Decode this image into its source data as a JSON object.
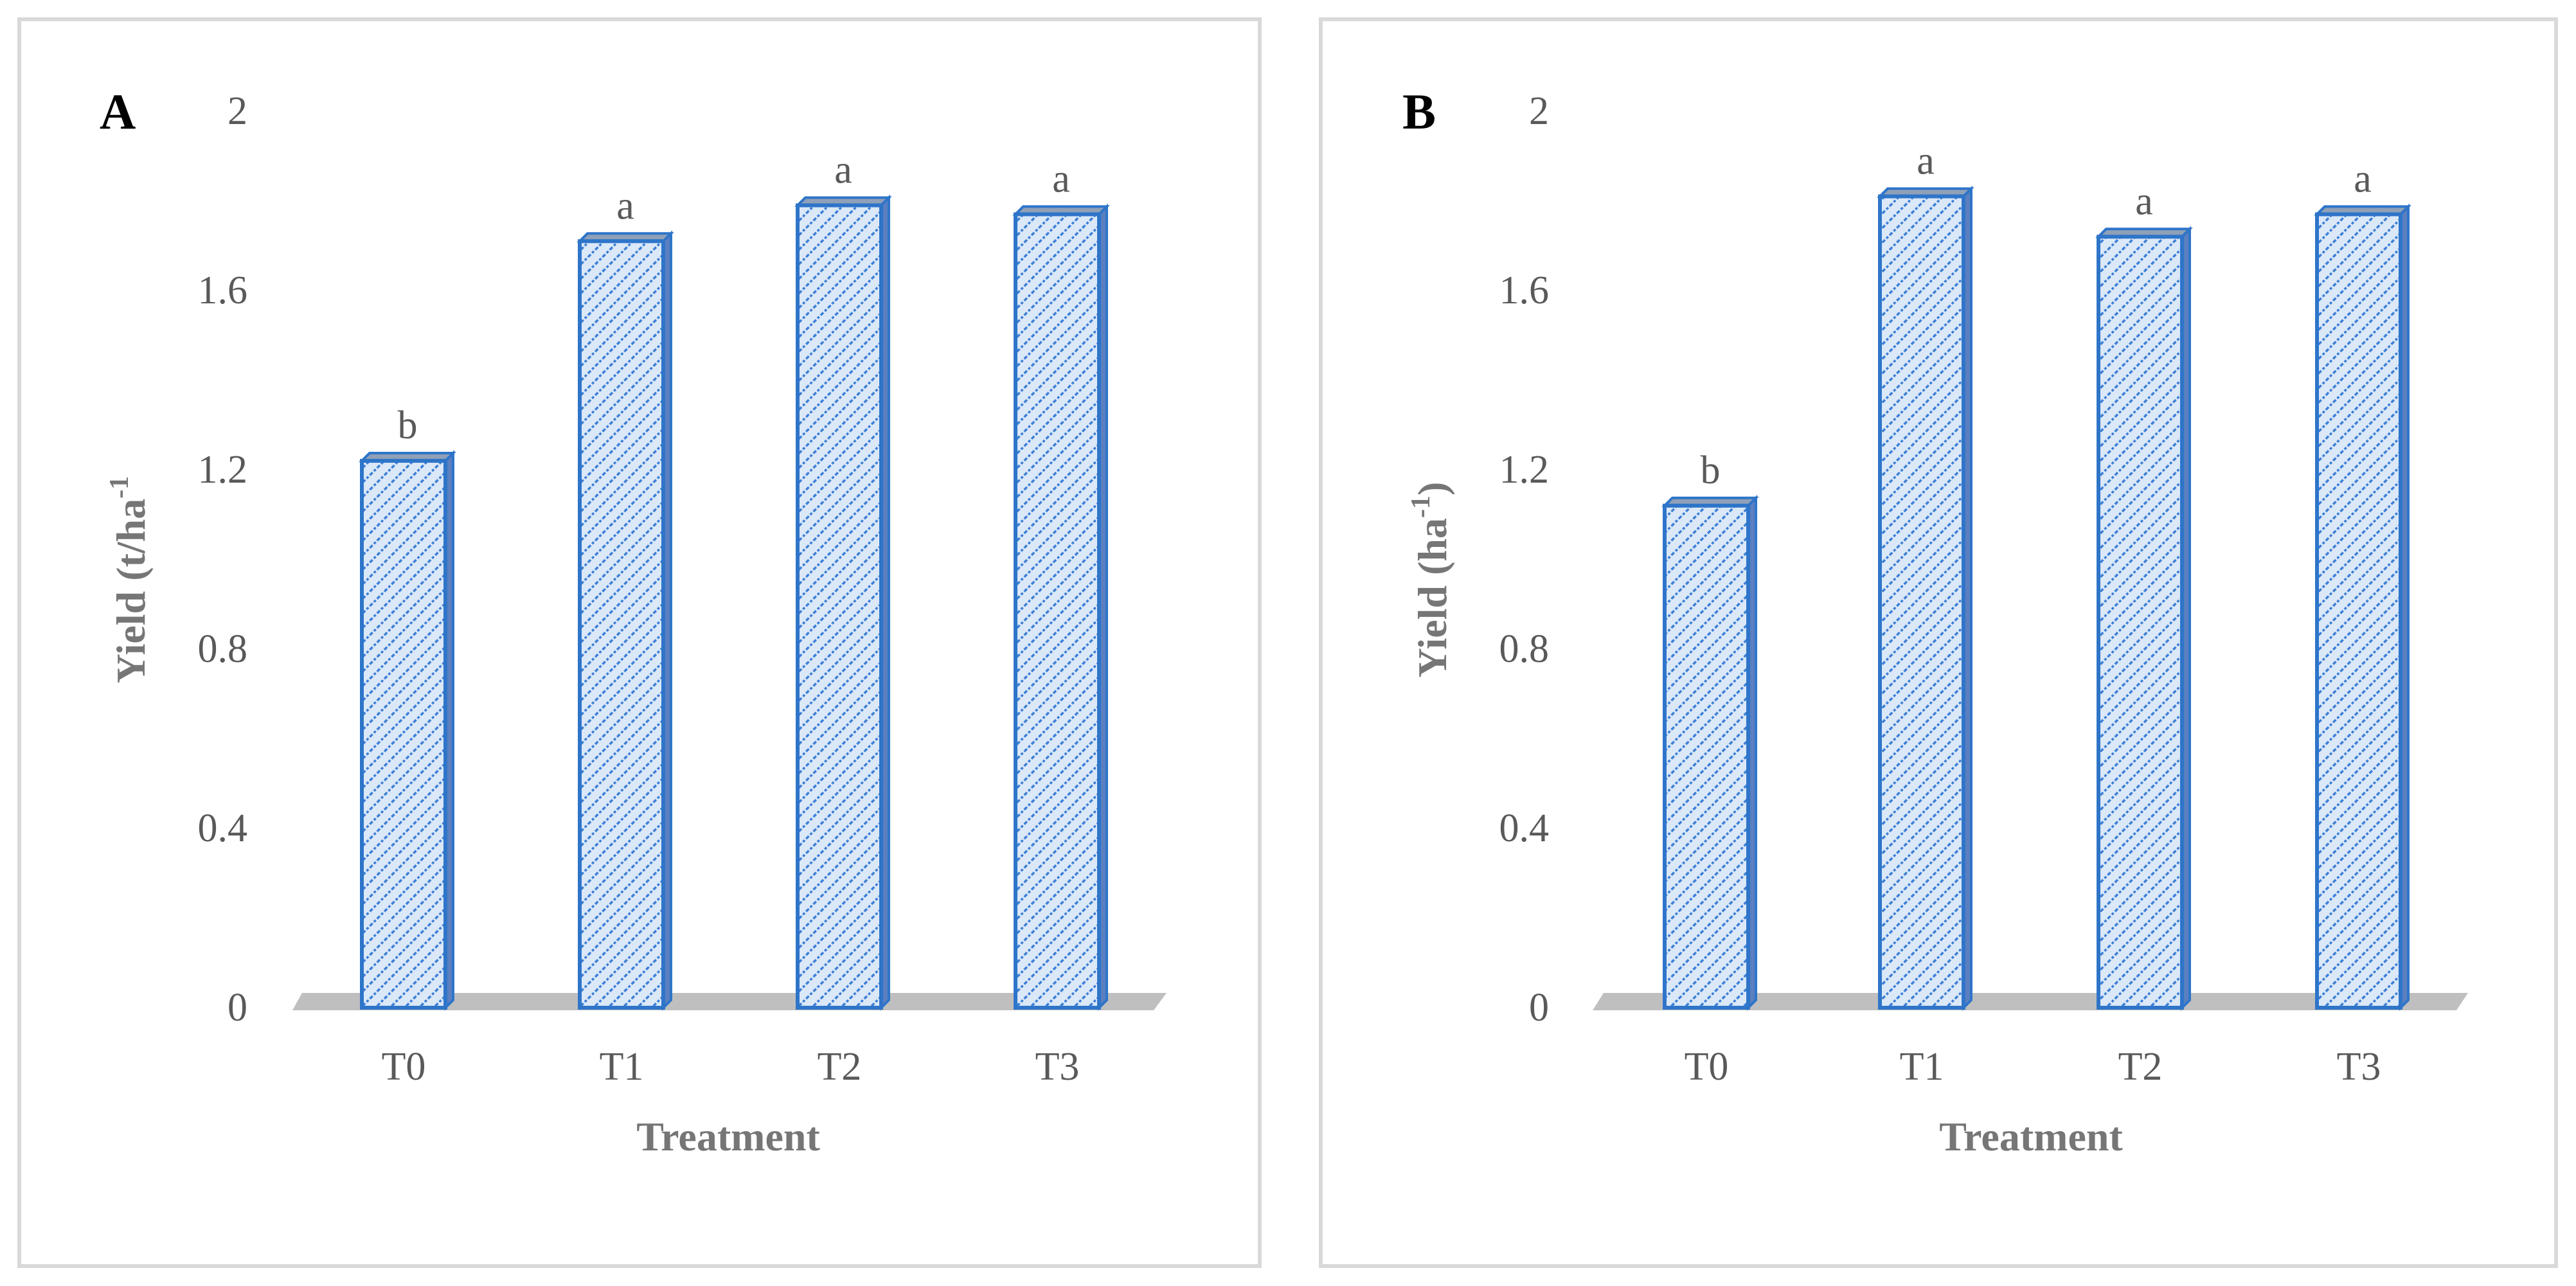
{
  "colors": {
    "bar_stroke": "#2e75c9",
    "bar_hatch": "#3d7fd6",
    "bar_fill": "#dbe8f8",
    "floor": "#bfbfbf",
    "text": "#595959"
  },
  "chart_data": [
    {
      "panel": "A",
      "type": "bar",
      "categories": [
        "T0",
        "T1",
        "T2",
        "T3"
      ],
      "values": [
        1.22,
        1.71,
        1.79,
        1.77
      ],
      "significance": [
        "b",
        "a",
        "a",
        "a"
      ],
      "xlabel": "Treatment",
      "ylabel": "Yield (t/ha",
      "ylabel_sup": "-1",
      "ylabel_tail": "",
      "ylim": [
        0,
        2
      ],
      "yticks": [
        "0",
        "0.4",
        "0.8",
        "1.2",
        "1.6",
        "2"
      ]
    },
    {
      "panel": "B",
      "type": "bar",
      "categories": [
        "T0",
        "T1",
        "T2",
        "T3"
      ],
      "values": [
        1.12,
        1.81,
        1.72,
        1.77
      ],
      "significance": [
        "b",
        "a",
        "a",
        "a"
      ],
      "xlabel": "Treatment",
      "ylabel": "Yield (ha",
      "ylabel_sup": "-1",
      "ylabel_tail": ")",
      "ylim": [
        0,
        2
      ],
      "yticks": [
        "0",
        "0.4",
        "0.8",
        "1.2",
        "1.6",
        "2"
      ]
    }
  ]
}
